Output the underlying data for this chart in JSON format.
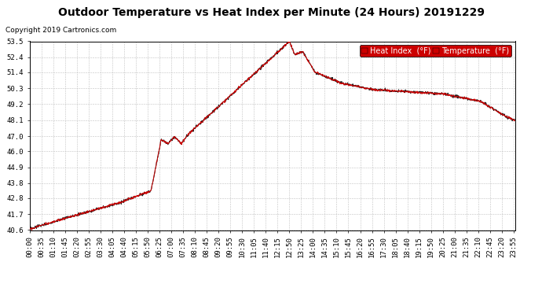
{
  "title": "Outdoor Temperature vs Heat Index per Minute (24 Hours) 20191229",
  "copyright": "Copyright 2019 Cartronics.com",
  "y_min": 40.6,
  "y_max": 53.5,
  "y_ticks": [
    40.6,
    41.7,
    42.8,
    43.8,
    44.9,
    46.0,
    47.0,
    48.1,
    49.2,
    50.3,
    51.4,
    52.4,
    53.5
  ],
  "x_tick_labels": [
    "00:00",
    "00:35",
    "01:10",
    "01:45",
    "02:20",
    "02:55",
    "03:30",
    "04:05",
    "04:40",
    "05:15",
    "05:50",
    "06:25",
    "07:00",
    "07:35",
    "08:10",
    "08:45",
    "09:20",
    "09:55",
    "10:30",
    "11:05",
    "11:40",
    "12:15",
    "12:50",
    "13:25",
    "14:00",
    "14:35",
    "15:10",
    "15:45",
    "16:20",
    "16:55",
    "17:30",
    "18:05",
    "18:40",
    "19:15",
    "19:50",
    "20:25",
    "21:00",
    "21:35",
    "22:10",
    "22:45",
    "23:20",
    "23:55"
  ],
  "line_color_red": "#cc0000",
  "line_color_dark": "#222222",
  "background_color": "#ffffff",
  "grid_color": "#bbbbbb",
  "legend_heat_index_text": "Heat Index  (°F)",
  "legend_temperature_text": "Temperature  (°F)",
  "title_fontsize": 10,
  "copyright_fontsize": 6.5,
  "tick_fontsize": 6.5,
  "legend_fontsize": 7
}
